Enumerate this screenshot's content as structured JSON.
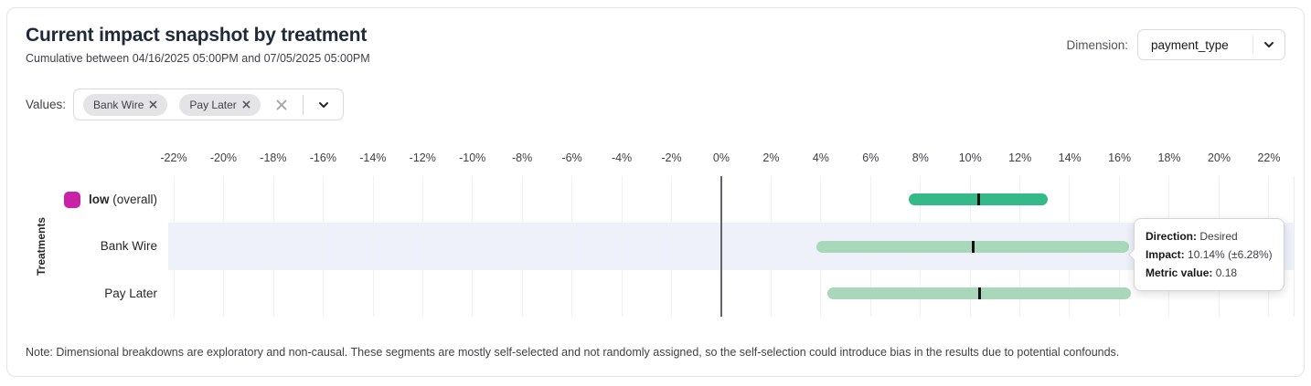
{
  "header": {
    "title": "Current impact snapshot by treatment",
    "subtitle": "Cumulative between 04/16/2025 05:00PM and 07/05/2025 05:00PM",
    "dimension_label": "Dimension:",
    "dimension_value": "payment_type"
  },
  "filters": {
    "values_label": "Values:",
    "chips": [
      {
        "label": "Bank Wire"
      },
      {
        "label": "Pay Later"
      }
    ],
    "icons": {
      "clear": "clear-x-icon",
      "expand": "chevron-down-icon",
      "chip_remove": "remove-x-icon"
    }
  },
  "chart_data": {
    "type": "range-bar",
    "title": "Current impact snapshot by treatment",
    "ylabel": "Treatments",
    "x_axis": {
      "unit": "%",
      "tick_values": [
        -22,
        -20,
        -18,
        -16,
        -14,
        -12,
        -10,
        -8,
        -6,
        -4,
        -2,
        0,
        2,
        4,
        6,
        8,
        10,
        12,
        14,
        16,
        18,
        20,
        22
      ],
      "tick_labels": [
        "-22%",
        "-20%",
        "-18%",
        "-16%",
        "-14%",
        "-12%",
        "-10%",
        "-8%",
        "-6%",
        "-4%",
        "-2%",
        "0%",
        "2%",
        "4%",
        "6%",
        "8%",
        "10%",
        "12%",
        "14%",
        "16%",
        "18%",
        "20%",
        "22%"
      ],
      "range": [
        -22.22,
        23.03
      ],
      "zero_line": true,
      "grid": true
    },
    "rows": [
      {
        "label": "low",
        "label_suffix": "(overall)",
        "swatch_color": "#c922a6",
        "impact_pct": 10.35,
        "ci_pct": 2.8,
        "bar_color": "#34b989",
        "highlighted": false
      },
      {
        "label": "Bank Wire",
        "label_suffix": "",
        "swatch_color": null,
        "impact_pct": 10.14,
        "ci_pct": 6.28,
        "bar_color": "#a8d8b9",
        "highlighted": true
      },
      {
        "label": "Pay Later",
        "label_suffix": "",
        "swatch_color": null,
        "impact_pct": 10.4,
        "ci_pct": 6.1,
        "bar_color": "#a8d8b9",
        "highlighted": false
      }
    ],
    "marker_color": "#111113",
    "highlight_color": "#eef0fa",
    "legend_position": "left"
  },
  "tooltip": {
    "rows": [
      {
        "label": "Direction:",
        "value": "Desired"
      },
      {
        "label": "Impact:",
        "value": "10.14% (±6.28%)"
      },
      {
        "label": "Metric value:",
        "value": "0.18"
      }
    ]
  },
  "note": "Note: Dimensional breakdowns are exploratory and non-causal. These segments are mostly self-selected and not randomly assigned, so the self-selection could introduce bias in the results due to potential confounds."
}
